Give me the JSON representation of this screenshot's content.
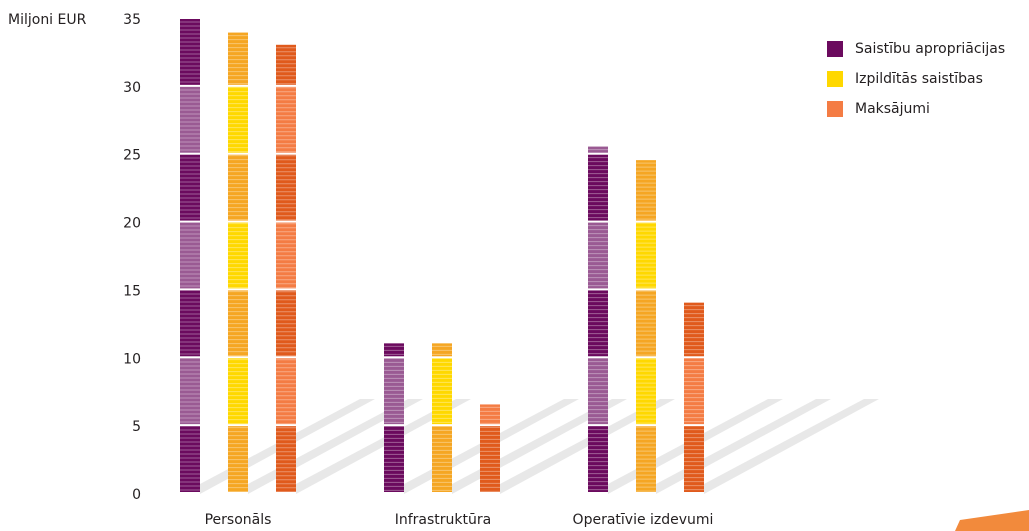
{
  "chart_data": {
    "type": "bar",
    "ylabel": "Miljoni EUR",
    "ylim": [
      0,
      35
    ],
    "yticks": [
      0,
      5,
      10,
      15,
      20,
      25,
      30,
      35
    ],
    "categories": [
      "Personāls",
      "Infrastruktūra",
      "Operatīvie izdevumi"
    ],
    "series": [
      {
        "name": "Saistību apropriācijas",
        "color": "#6b0a5e",
        "light_color": "#9a5a93",
        "values": [
          35.0,
          11.1,
          25.6
        ]
      },
      {
        "name": "Izpildītās saistības",
        "color": "#f5a623",
        "light_color": "#ffd800",
        "values": [
          34.0,
          11.1,
          24.6
        ]
      },
      {
        "name": "Maksājumi",
        "color": "#e05a1c",
        "light_color": "#f47c44",
        "values": [
          33.1,
          6.6,
          14.1
        ]
      }
    ],
    "legend_position": "top-right",
    "grid": false
  }
}
